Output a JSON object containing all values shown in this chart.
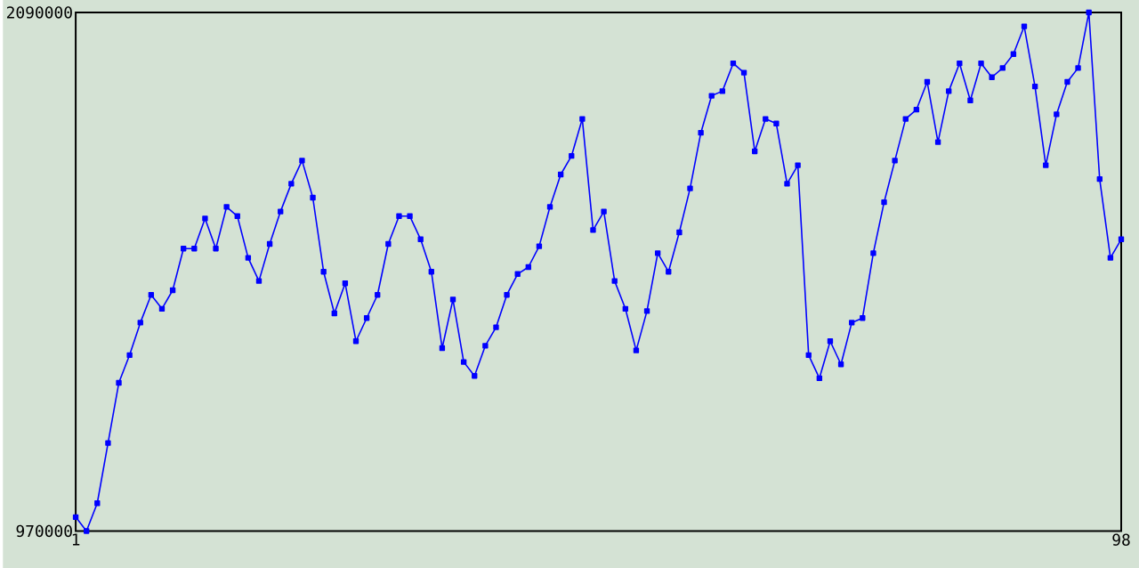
{
  "chart_data": {
    "type": "line",
    "x": [
      1,
      2,
      3,
      4,
      5,
      6,
      7,
      8,
      9,
      10,
      11,
      12,
      13,
      14,
      15,
      16,
      17,
      18,
      19,
      20,
      21,
      22,
      23,
      24,
      25,
      26,
      27,
      28,
      29,
      30,
      31,
      32,
      33,
      34,
      35,
      36,
      37,
      38,
      39,
      40,
      41,
      42,
      43,
      44,
      45,
      46,
      47,
      48,
      49,
      50,
      51,
      52,
      53,
      54,
      55,
      56,
      57,
      58,
      59,
      60,
      61,
      62,
      63,
      64,
      65,
      66,
      67,
      68,
      69,
      70,
      71,
      72,
      73,
      74,
      75,
      76,
      77,
      78,
      79,
      80,
      81,
      82,
      83,
      84,
      85,
      86,
      87,
      88,
      89,
      90,
      91,
      92,
      93,
      94,
      95,
      96,
      97,
      98
    ],
    "series": [
      {
        "color": "#0000ff",
        "values": [
          1000000,
          970000,
          1030000,
          1160000,
          1290000,
          1350000,
          1420000,
          1480000,
          1450000,
          1490000,
          1580000,
          1580000,
          1645000,
          1580000,
          1670000,
          1650000,
          1560000,
          1510000,
          1590000,
          1660000,
          1720000,
          1770000,
          1690000,
          1530000,
          1440000,
          1505000,
          1380000,
          1430000,
          1480000,
          1590000,
          1650000,
          1650000,
          1600000,
          1530000,
          1365000,
          1470000,
          1335000,
          1305000,
          1370000,
          1410000,
          1480000,
          1525000,
          1540000,
          1585000,
          1670000,
          1740000,
          1780000,
          1860000,
          1620000,
          1660000,
          1510000,
          1450000,
          1360000,
          1445000,
          1570000,
          1530000,
          1615000,
          1710000,
          1830000,
          1910000,
          1920000,
          1980000,
          1960000,
          1790000,
          1860000,
          1850000,
          1720000,
          1760000,
          1350000,
          1300000,
          1380000,
          1330000,
          1420000,
          1430000,
          1570000,
          1680000,
          1770000,
          1860000,
          1880000,
          1940000,
          1810000,
          1920000,
          1980000,
          1900000,
          1980000,
          1950000,
          1970000,
          2000000,
          2060000,
          1930000,
          1760000,
          1870000,
          1940000,
          1970000,
          2090000,
          1730000,
          1560000,
          1600000
        ]
      }
    ],
    "xlim": [
      1,
      98
    ],
    "ylim": [
      970000,
      2090000
    ],
    "xticks": [
      1,
      98
    ],
    "yticks": [
      970000,
      2090000
    ],
    "marker": "square",
    "line_style": "solid"
  }
}
